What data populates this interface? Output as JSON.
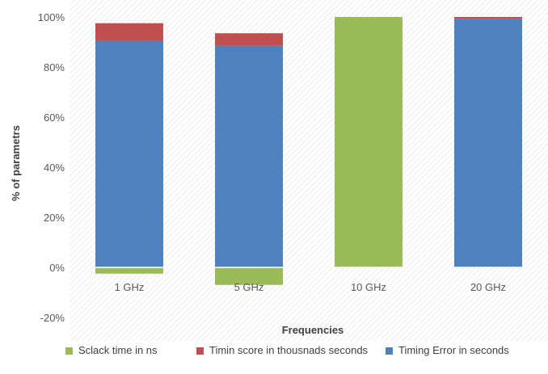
{
  "chart_data": {
    "type": "stacked-bar-100",
    "title": "",
    "xlabel": "Frequencies",
    "ylabel": "% of parametrs",
    "ylim": [
      -20,
      100
    ],
    "yticks": [
      "-20%",
      "0%",
      "20%",
      "40%",
      "60%",
      "80%",
      "100%"
    ],
    "ytick_values": [
      -20,
      0,
      20,
      40,
      60,
      80,
      100
    ],
    "categories": [
      "1 GHz",
      "5 GHz",
      "10 GHz",
      "20 GHz"
    ],
    "series": [
      {
        "name": "Sclack time in ns",
        "color": "#9bbb59",
        "values": [
          -2.5,
          -7,
          100,
          0
        ]
      },
      {
        "name": "Timin score in thousnads seconds",
        "color": "#c0504d",
        "values": [
          7,
          5,
          0,
          0.7
        ]
      },
      {
        "name": "Timing Error in seconds",
        "color": "#4f81bd",
        "values": [
          90.5,
          88.5,
          0,
          99.3
        ]
      }
    ],
    "stack_order": [
      2,
      1,
      0
    ],
    "grid": false,
    "legend_position": "bottom",
    "background_pattern": "diagonal-hatch"
  }
}
